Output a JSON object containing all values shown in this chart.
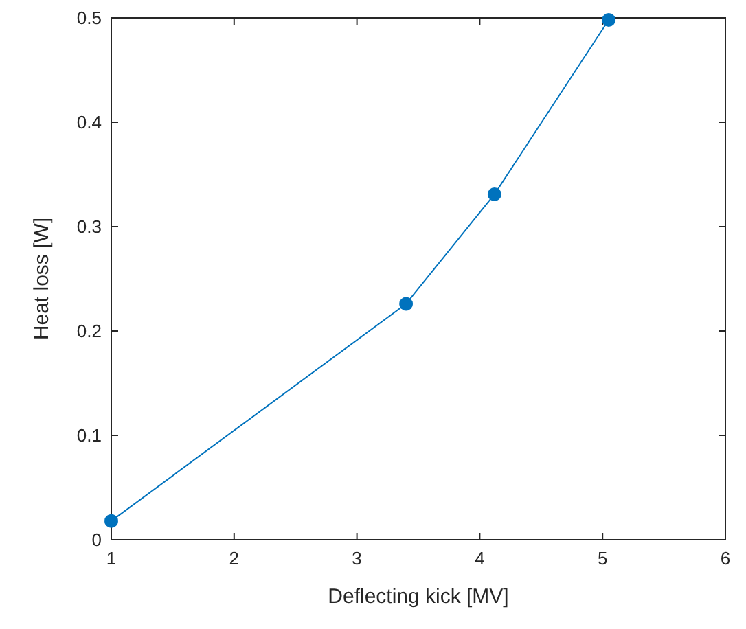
{
  "chart_data": {
    "type": "line",
    "xlabel": "Deflecting kick [MV]",
    "ylabel": "Heat loss [W]",
    "x": [
      1,
      3.4,
      4.12,
      5.05
    ],
    "series": [
      {
        "color": "#0072bd",
        "values": [
          0.018,
          0.226,
          0.331,
          0.498
        ]
      }
    ],
    "xlim": [
      1,
      6
    ],
    "xticks": [
      1,
      2,
      3,
      4,
      5,
      6
    ],
    "ylim": [
      0,
      0.5
    ],
    "yticks": [
      0,
      0.1,
      0.2,
      0.3,
      0.4,
      0.5
    ],
    "marker": "circle",
    "line_style": "solid"
  }
}
